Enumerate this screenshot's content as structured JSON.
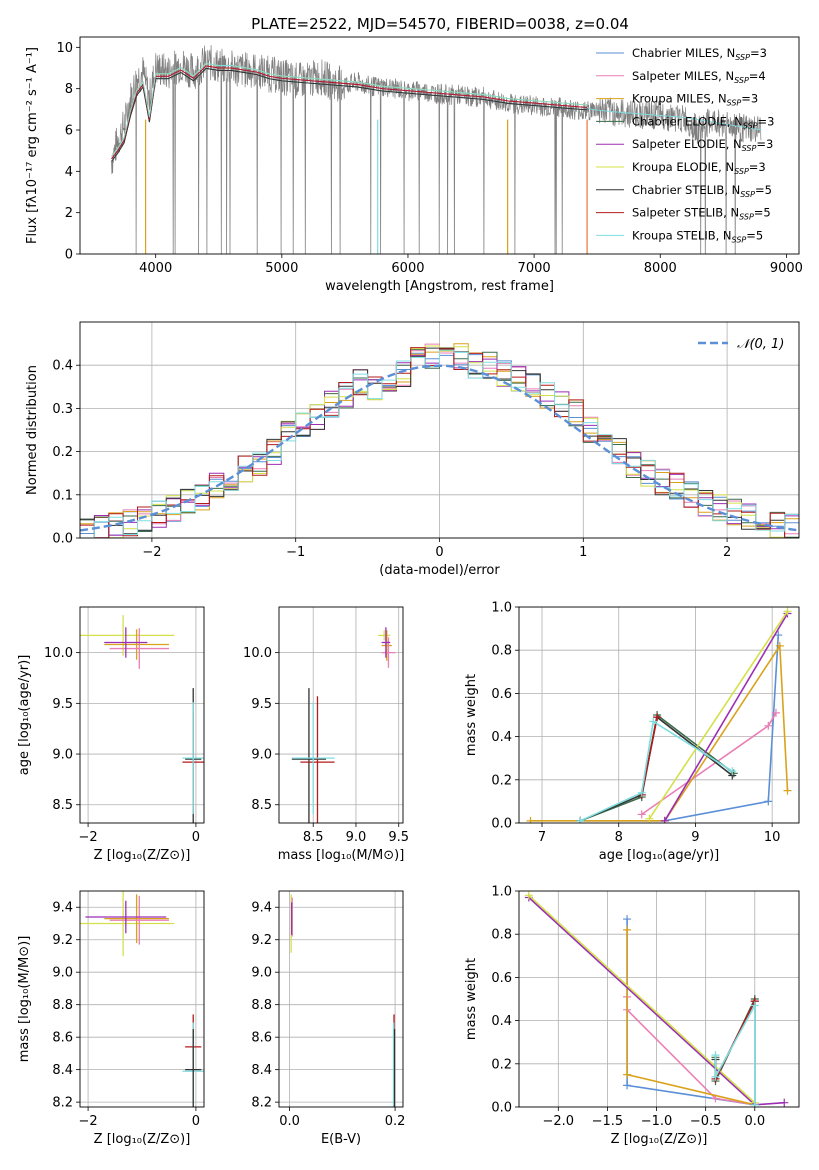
{
  "figure_title": "PLATE=2522, MJD=54570, FIBERID=0038, z=0.04",
  "legend_spectra": [
    {
      "label_main": "Chabrier MILES, N",
      "label_sub": "SSP",
      "label_end": "=3",
      "color": "#5b8fd6"
    },
    {
      "label_main": "Salpeter MILES, N",
      "label_sub": "SSP",
      "label_end": "=4",
      "color": "#e87fb6"
    },
    {
      "label_main": "Kroupa MILES, N",
      "label_sub": "SSP",
      "label_end": "=3",
      "color": "#d9a21b"
    },
    {
      "label_main": "Chabrier ELODIE, N",
      "label_sub": "SSP",
      "label_end": "=3",
      "color": "#3a6b4a"
    },
    {
      "label_main": "Salpeter ELODIE, N",
      "label_sub": "SSP",
      "label_end": "=3",
      "color": "#9b2fb4"
    },
    {
      "label_main": "Kroupa ELODIE, N",
      "label_sub": "SSP",
      "label_end": "=3",
      "color": "#d4e04a"
    },
    {
      "label_main": "Chabrier STELIB, N",
      "label_sub": "SSP",
      "label_end": "=5",
      "color": "#333333"
    },
    {
      "label_main": "Salpeter STELIB, N",
      "label_sub": "SSP",
      "label_end": "=5",
      "color": "#b31b1b"
    },
    {
      "label_main": "Kroupa STELIB, N",
      "label_sub": "SSP",
      "label_end": "=5",
      "color": "#7fdde0"
    }
  ],
  "gaussian_legend": "𝒩(0, 1)",
  "chart_data": [
    {
      "id": "spectrum",
      "type": "line",
      "title": "PLATE=2522, MJD=54570, FIBERID=0038, z=0.04",
      "xlabel": "wavelength [Angstrom, rest frame]",
      "ylabel": "Flux [fλ10⁻¹⁷ erg cm⁻² s⁻¹ A⁻¹]",
      "xlim": [
        3400,
        9100
      ],
      "ylim": [
        0,
        10.5
      ],
      "xticks": [
        4000,
        5000,
        6000,
        7000,
        8000,
        9000
      ],
      "yticks": [
        0,
        2,
        4,
        6,
        8,
        10
      ],
      "observed_color": "#7f7f7f",
      "observed_x": [
        3650,
        3700,
        3750,
        3800,
        3850,
        3900,
        3950,
        4000,
        4100,
        4200,
        4300,
        4400,
        4500,
        4600,
        4700,
        4800,
        4900,
        5000,
        5100,
        5200,
        5300,
        5400,
        5500,
        5600,
        5700,
        5800,
        5900,
        6000,
        6100,
        6200,
        6300,
        6400,
        6500,
        6600,
        6700,
        6800,
        6900,
        7000,
        7100,
        7200,
        7300,
        7400,
        7500,
        7600,
        7700,
        7800,
        7900,
        8000,
        8100,
        8200,
        8300,
        8400,
        8500,
        8600,
        8700,
        8800
      ],
      "observed_y": [
        4.5,
        5.5,
        6.2,
        7.5,
        8.5,
        8.8,
        7.5,
        9.0,
        8.8,
        9.2,
        8.8,
        9.3,
        9.1,
        9.0,
        8.9,
        8.9,
        8.7,
        8.6,
        8.4,
        8.4,
        8.6,
        8.3,
        8.2,
        8.3,
        8.1,
        8.1,
        8.0,
        7.9,
        7.9,
        7.8,
        7.7,
        7.7,
        7.6,
        7.6,
        7.4,
        7.3,
        7.2,
        7.2,
        7.1,
        7.1,
        7.0,
        6.9,
        7.0,
        6.9,
        6.8,
        6.8,
        6.7,
        6.7,
        6.6,
        6.5,
        6.0,
        6.4,
        6.3,
        6.2,
        6.0,
        6.0
      ],
      "model_x": [
        3650,
        3700,
        3750,
        3800,
        3850,
        3900,
        3950,
        4000,
        4100,
        4200,
        4300,
        4400,
        4500,
        4600,
        4700,
        4800,
        4900,
        5000,
        5200,
        5400,
        5600,
        5800,
        6000,
        6200,
        6400,
        6600,
        6800,
        7000,
        7200,
        7400,
        7420
      ],
      "model_y": [
        4.6,
        5.0,
        5.5,
        6.8,
        7.8,
        8.2,
        6.5,
        8.6,
        8.6,
        8.9,
        8.5,
        9.1,
        9.0,
        9.0,
        8.9,
        8.8,
        8.6,
        8.5,
        8.4,
        8.3,
        8.2,
        8.0,
        7.9,
        7.8,
        7.7,
        7.6,
        7.4,
        7.3,
        7.2,
        7.1,
        7.1
      ],
      "model_end_x": [
        7420,
        7450,
        7600,
        7800,
        8000,
        8200,
        8400,
        8600,
        8800
      ],
      "model_end_y": [
        7.1,
        7.0,
        6.9,
        6.8,
        6.7,
        6.6,
        6.4,
        6.2,
        6.0
      ]
    },
    {
      "id": "residuals",
      "type": "bar",
      "xlabel": "(data-model)/error",
      "ylabel": "Normed distribution",
      "xlim": [
        -2.5,
        2.5
      ],
      "ylim": [
        0,
        0.5
      ],
      "xticks": [
        -2,
        -1,
        0,
        1,
        2
      ],
      "yticks": [
        0.0,
        0.1,
        0.2,
        0.3,
        0.4
      ],
      "bin_edges": [
        -2.5,
        -2.4,
        -2.3,
        -2.2,
        -2.1,
        -2.0,
        -1.9,
        -1.8,
        -1.7,
        -1.6,
        -1.5,
        -1.4,
        -1.3,
        -1.2,
        -1.1,
        -1.0,
        -0.9,
        -0.8,
        -0.7,
        -0.6,
        -0.5,
        -0.4,
        -0.3,
        -0.2,
        -0.1,
        0.0,
        0.1,
        0.2,
        0.3,
        0.4,
        0.5,
        0.6,
        0.7,
        0.8,
        0.9,
        1.0,
        1.1,
        1.2,
        1.3,
        1.4,
        1.5,
        1.6,
        1.7,
        1.8,
        1.9,
        2.0,
        2.1,
        2.2,
        2.3,
        2.4,
        2.5
      ],
      "hist_base": [
        0.018,
        0.022,
        0.028,
        0.035,
        0.045,
        0.055,
        0.068,
        0.085,
        0.095,
        0.12,
        0.14,
        0.16,
        0.17,
        0.2,
        0.24,
        0.26,
        0.28,
        0.31,
        0.33,
        0.36,
        0.35,
        0.37,
        0.38,
        0.43,
        0.42,
        0.41,
        0.42,
        0.4,
        0.4,
        0.38,
        0.37,
        0.35,
        0.33,
        0.31,
        0.29,
        0.25,
        0.22,
        0.2,
        0.17,
        0.15,
        0.13,
        0.12,
        0.1,
        0.08,
        0.07,
        0.06,
        0.05,
        0.04,
        0.03,
        0.025
      ],
      "gaussian_mu": 0,
      "gaussian_sigma": 1
    },
    {
      "id": "age_vs_z",
      "type": "scatter",
      "xlabel": "Z [log₁₀(Z/Z⊙)]",
      "ylabel": "age  [log₁₀(age/yr)]",
      "xlim": [
        -2.15,
        0.15
      ],
      "ylim": [
        8.32,
        10.45
      ],
      "xticks": [
        -2,
        0
      ],
      "yticks": [
        8.5,
        9.0,
        9.5,
        10.0
      ],
      "points": [
        {
          "x": -1.35,
          "y": 10.17,
          "xerr": 0.95,
          "yerr": 0.2,
          "c": "#d4e04a"
        },
        {
          "x": -1.1,
          "y": 10.08,
          "xerr": 0.6,
          "yerr": 0.15,
          "c": "#d9a21b"
        },
        {
          "x": -1.05,
          "y": 10.04,
          "xerr": 0.55,
          "yerr": 0.2,
          "c": "#e87fb6"
        },
        {
          "x": -1.3,
          "y": 10.1,
          "xerr": 0.4,
          "yerr": 0.15,
          "c": "#9b2fb4"
        },
        {
          "x": -0.05,
          "y": 8.95,
          "xerr": 0.15,
          "yerr": 0.7,
          "c": "#333333"
        },
        {
          "x": -0.05,
          "y": 8.92,
          "xerr": 0.2,
          "yerr": 0.5,
          "c": "#b31b1b"
        },
        {
          "x": -0.05,
          "y": 8.96,
          "xerr": 0.2,
          "yerr": 0.55,
          "c": "#7fdde0"
        }
      ]
    },
    {
      "id": "age_vs_mass",
      "type": "scatter",
      "xlabel": "mass [log₁₀(M/M⊙)]",
      "ylabel": "",
      "xlim": [
        8.1,
        9.55
      ],
      "ylim": [
        8.32,
        10.45
      ],
      "xticks": [
        8.5,
        9.0,
        9.5
      ],
      "yticks": [
        8.5,
        9.0,
        9.5,
        10.0
      ],
      "points": [
        {
          "x": 9.33,
          "y": 10.17,
          "xerr": 0.07,
          "yerr": 0.05,
          "c": "#d4e04a"
        },
        {
          "x": 9.36,
          "y": 10.07,
          "xerr": 0.06,
          "yerr": 0.15,
          "c": "#d9a21b"
        },
        {
          "x": 9.38,
          "y": 10.0,
          "xerr": 0.08,
          "yerr": 0.15,
          "c": "#e87fb6"
        },
        {
          "x": 9.35,
          "y": 10.1,
          "xerr": 0.05,
          "yerr": 0.15,
          "c": "#9b2fb4"
        },
        {
          "x": 8.45,
          "y": 8.95,
          "xerr": 0.2,
          "yerr": 0.7,
          "c": "#333333"
        },
        {
          "x": 8.55,
          "y": 8.92,
          "xerr": 0.2,
          "yerr": 0.65,
          "c": "#b31b1b"
        },
        {
          "x": 8.5,
          "y": 8.96,
          "xerr": 0.25,
          "yerr": 0.55,
          "c": "#7fdde0"
        }
      ]
    },
    {
      "id": "weight_vs_age",
      "type": "line",
      "xlabel": "age  [log₁₀(age/yr)]",
      "ylabel": "mass weight",
      "xlim": [
        6.7,
        10.35
      ],
      "ylim": [
        0,
        1.0
      ],
      "xticks": [
        7,
        8,
        9,
        10
      ],
      "yticks": [
        0.0,
        0.2,
        0.4,
        0.6,
        0.8,
        1.0
      ],
      "series": [
        {
          "c": "#5b8fd6",
          "x": [
            7.5,
            8.6,
            9.95,
            10.08
          ],
          "y": [
            0.01,
            0.01,
            0.1,
            0.87
          ]
        },
        {
          "c": "#e87fb6",
          "x": [
            8.3,
            9.95,
            10.05
          ],
          "y": [
            0.04,
            0.45,
            0.51
          ]
        },
        {
          "c": "#d9a21b",
          "x": [
            6.85,
            8.6,
            10.1,
            10.2
          ],
          "y": [
            0.01,
            0.01,
            0.82,
            0.15
          ]
        },
        {
          "c": "#3a6b4a",
          "x": [
            7.5,
            8.3,
            8.5,
            9.5
          ],
          "y": [
            0.01,
            0.12,
            0.5,
            0.23
          ]
        },
        {
          "c": "#9b2fb4",
          "x": [
            8.6,
            10.2
          ],
          "y": [
            0.01,
            0.97
          ]
        },
        {
          "c": "#d4e04a",
          "x": [
            8.4,
            10.2
          ],
          "y": [
            0.02,
            0.98
          ]
        },
        {
          "c": "#333333",
          "x": [
            7.5,
            8.3,
            8.5,
            9.48
          ],
          "y": [
            0.01,
            0.13,
            0.49,
            0.22
          ]
        },
        {
          "c": "#b31b1b",
          "x": [
            8.3,
            8.5
          ],
          "y": [
            0.13,
            0.49
          ]
        },
        {
          "c": "#7fdde0",
          "x": [
            7.5,
            8.3,
            8.45,
            9.48
          ],
          "y": [
            0.01,
            0.14,
            0.47,
            0.24
          ]
        }
      ]
    },
    {
      "id": "mass_vs_z",
      "type": "scatter",
      "xlabel": "Z [log₁₀(Z/Z⊙)]",
      "ylabel": "mass [log₁₀(M/M⊙)]",
      "xlim": [
        -2.15,
        0.15
      ],
      "ylim": [
        8.17,
        9.5
      ],
      "xticks": [
        -2,
        0
      ],
      "yticks": [
        8.2,
        8.4,
        8.6,
        8.8,
        9.0,
        9.2,
        9.4
      ],
      "points": [
        {
          "x": -1.35,
          "y": 9.3,
          "xerr": 0.95,
          "yerr": 0.2,
          "c": "#d4e04a"
        },
        {
          "x": -1.1,
          "y": 9.33,
          "xerr": 0.6,
          "yerr": 0.15,
          "c": "#d9a21b"
        },
        {
          "x": -1.05,
          "y": 9.32,
          "xerr": 0.55,
          "yerr": 0.15,
          "c": "#e87fb6"
        },
        {
          "x": -1.3,
          "y": 9.34,
          "xerr": 0.75,
          "yerr": 0.1,
          "c": "#9b2fb4"
        },
        {
          "x": -0.05,
          "y": 8.54,
          "xerr": 0.15,
          "yerr": 0.2,
          "c": "#b31b1b"
        },
        {
          "x": -0.05,
          "y": 8.39,
          "xerr": 0.2,
          "yerr": 0.3,
          "c": "#7fdde0"
        },
        {
          "x": -0.05,
          "y": 8.4,
          "xerr": 0.15,
          "yerr": 0.25,
          "c": "#333333"
        }
      ]
    },
    {
      "id": "mass_vs_ebv",
      "type": "scatter",
      "xlabel": "E(B-V)",
      "ylabel": "",
      "xlim": [
        -0.02,
        0.215
      ],
      "ylim": [
        8.17,
        9.5
      ],
      "xticks": [
        0.0,
        0.2
      ],
      "yticks": [
        8.2,
        8.4,
        8.6,
        8.8,
        9.0,
        9.2,
        9.4
      ],
      "points": [
        {
          "x": 0.003,
          "y": 9.3,
          "xerr": 0,
          "yerr": 0.18,
          "c": "#d4e04a"
        },
        {
          "x": 0.005,
          "y": 9.34,
          "xerr": 0,
          "yerr": 0.12,
          "c": "#e87fb6"
        },
        {
          "x": 0.004,
          "y": 9.33,
          "xerr": 0,
          "yerr": 0.1,
          "c": "#9b2fb4"
        },
        {
          "x": 0.198,
          "y": 8.54,
          "xerr": 0,
          "yerr": 0.2,
          "c": "#b31b1b"
        },
        {
          "x": 0.197,
          "y": 8.39,
          "xerr": 0,
          "yerr": 0.3,
          "c": "#7fdde0"
        },
        {
          "x": 0.199,
          "y": 8.4,
          "xerr": 0,
          "yerr": 0.25,
          "c": "#333333"
        }
      ]
    },
    {
      "id": "weight_vs_z",
      "type": "line",
      "xlabel": "Z [log₁₀(Z/Z⊙)]",
      "ylabel": "mass weight",
      "xlim": [
        -2.4,
        0.45
      ],
      "ylim": [
        0,
        1.0
      ],
      "xticks": [
        -2.0,
        -1.5,
        -1.0,
        -0.5,
        0.0
      ],
      "yticks": [
        0.0,
        0.2,
        0.4,
        0.6,
        0.8,
        1.0
      ],
      "series": [
        {
          "c": "#5b8fd6",
          "x": [
            -1.3,
            -1.3,
            0.0
          ],
          "y": [
            0.87,
            0.1,
            0.01
          ]
        },
        {
          "c": "#e87fb6",
          "x": [
            -1.3,
            -1.3,
            -0.4,
            0.0
          ],
          "y": [
            0.51,
            0.45,
            0.04,
            0.01
          ]
        },
        {
          "c": "#d9a21b",
          "x": [
            -1.3,
            -1.3,
            0.0
          ],
          "y": [
            0.82,
            0.15,
            0.01
          ]
        },
        {
          "c": "#3a6b4a",
          "x": [
            -0.4,
            -0.4,
            0.0,
            0.0
          ],
          "y": [
            0.23,
            0.12,
            0.5,
            0.01
          ]
        },
        {
          "c": "#9b2fb4",
          "x": [
            -2.3,
            0.0,
            0.3
          ],
          "y": [
            0.97,
            0.01,
            0.02
          ]
        },
        {
          "c": "#d4e04a",
          "x": [
            -2.3,
            0.0
          ],
          "y": [
            0.98,
            0.02
          ]
        },
        {
          "c": "#333333",
          "x": [
            -0.4,
            -0.4,
            0.0,
            0.0
          ],
          "y": [
            0.22,
            0.13,
            0.49,
            0.01
          ]
        },
        {
          "c": "#b31b1b",
          "x": [
            -0.4,
            0.0
          ],
          "y": [
            0.13,
            0.49
          ]
        },
        {
          "c": "#7fdde0",
          "x": [
            -0.4,
            -0.4,
            0.0,
            0.0
          ],
          "y": [
            0.24,
            0.14,
            0.47,
            0.01
          ]
        }
      ]
    }
  ]
}
